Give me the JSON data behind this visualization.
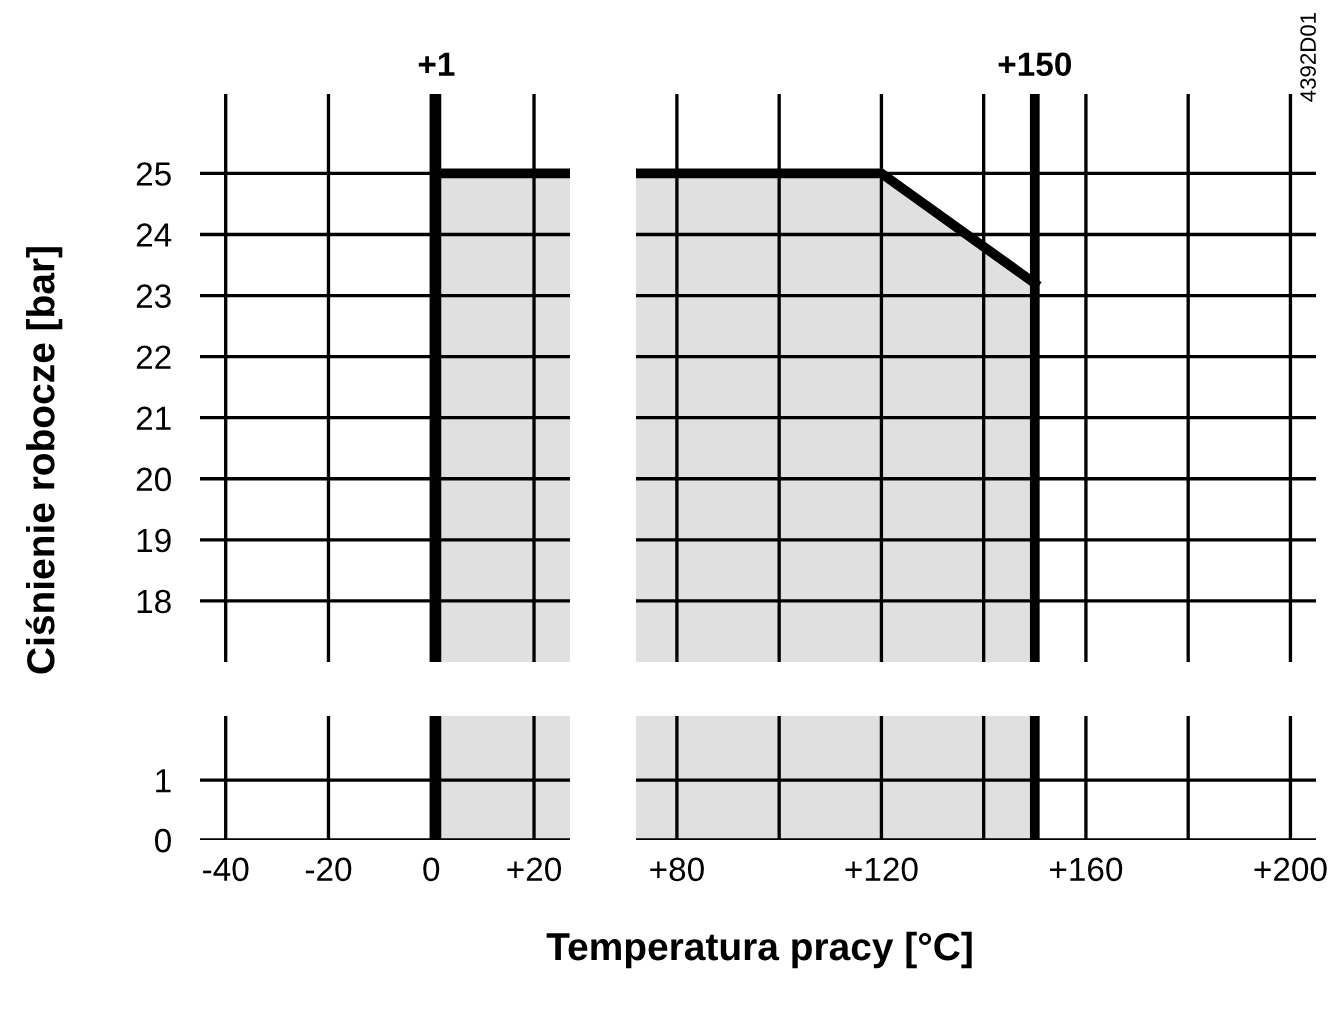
{
  "chart_data": [
    {
      "type": "area",
      "ylabel": "Ciśnienie robocze [bar]",
      "xlabel": "Temperatura pracy [°C]",
      "tick_labels": "y",
      "grid": true,
      "xlim": [
        -45,
        27
      ],
      "ylim": [
        17,
        26.3
      ],
      "xticks": [
        {
          "value": -40,
          "label": null
        },
        {
          "value": -20,
          "label": null
        },
        {
          "value": 0,
          "label": null
        },
        {
          "value": 20,
          "label": null
        }
      ],
      "yticks": [
        18,
        19,
        20,
        21,
        22,
        23,
        24,
        25
      ],
      "series": [
        {
          "color": "#000000",
          "x": [
            1,
            27
          ],
          "values": [
            25,
            25
          ]
        }
      ],
      "ref_lines": [
        {
          "axis": "x",
          "value": 1,
          "label": "+1",
          "color": "#000000"
        }
      ]
    },
    {
      "type": "area",
      "tick_labels": false,
      "grid": true,
      "xlim": [
        72,
        205
      ],
      "ylim": [
        17,
        26.3
      ],
      "xticks": [
        {
          "value": 80,
          "label": null
        },
        {
          "value": 100,
          "label": null
        },
        {
          "value": 120,
          "label": null
        },
        {
          "value": 140,
          "label": null
        },
        {
          "value": 160,
          "label": null
        },
        {
          "value": 180,
          "label": null
        },
        {
          "value": 200,
          "label": null
        }
      ],
      "yticks": [
        {
          "value": 18,
          "label": null
        },
        {
          "value": 19,
          "label": null
        },
        {
          "value": 20,
          "label": null
        },
        {
          "value": 21,
          "label": null
        },
        {
          "value": 22,
          "label": null
        },
        {
          "value": 23,
          "label": null
        },
        {
          "value": 24,
          "label": null
        },
        {
          "value": 25,
          "label": null
        }
      ],
      "series": [
        {
          "color": "#000000",
          "x": [
            72,
            120,
            150
          ],
          "values": [
            25,
            25,
            23.2
          ]
        }
      ],
      "ref_lines": [
        {
          "axis": "x",
          "value": 150,
          "label": "+150",
          "color": "#000000"
        }
      ],
      "annotations": [
        "4392D01"
      ]
    },
    {
      "type": "area",
      "grid": true,
      "xlim": [
        -45,
        27
      ],
      "ylim": [
        0,
        2.07
      ],
      "xticks": [
        -40,
        -20,
        0,
        {
          "value": 20,
          "label": "+20"
        }
      ],
      "yticks": [
        0,
        1
      ],
      "bands": [
        {
          "axis": "x",
          "from": 1,
          "to": 27,
          "color": "#e0e0e0"
        }
      ],
      "ref_lines": [
        {
          "axis": "x",
          "value": 1,
          "color": "#000000"
        }
      ]
    },
    {
      "type": "area",
      "tick_labels": "x",
      "grid": true,
      "xlim": [
        72,
        205
      ],
      "ylim": [
        0,
        2.07
      ],
      "xticks": [
        {
          "value": 80,
          "label": "+80"
        },
        {
          "value": 100,
          "label": null
        },
        {
          "value": 120,
          "label": "+120"
        },
        {
          "value": 140,
          "label": null
        },
        {
          "value": 160,
          "label": "+160"
        },
        {
          "value": 180,
          "label": null
        },
        {
          "value": 200,
          "label": "+200"
        }
      ],
      "yticks": [
        {
          "value": 0,
          "label": null
        },
        {
          "value": 1,
          "label": null
        }
      ],
      "bands": [
        {
          "axis": "x",
          "from": 72,
          "to": 150,
          "color": "#e0e0e0"
        }
      ],
      "ref_lines": [
        {
          "axis": "x",
          "value": 150,
          "color": "#000000"
        }
      ]
    }
  ]
}
